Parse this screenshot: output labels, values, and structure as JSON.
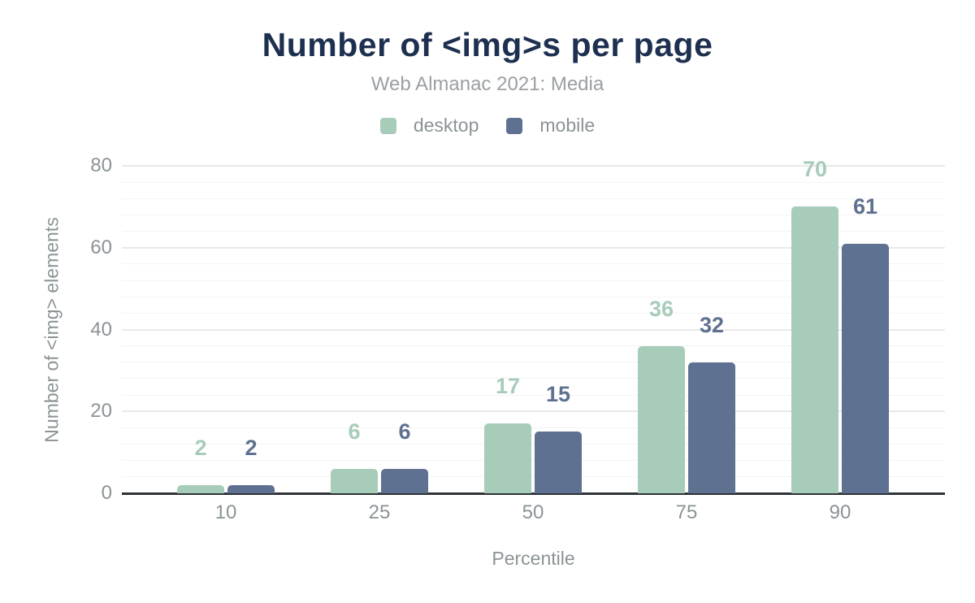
{
  "title": "Number of <img>s per page",
  "subtitle": "Web Almanac 2021: Media",
  "legend": [
    {
      "label": "desktop",
      "color": "#a8ccba"
    },
    {
      "label": "mobile",
      "color": "#5f7190"
    }
  ],
  "axes": {
    "xlabel": "Percentile",
    "ylabel": "Number of <img> elements"
  },
  "colors": {
    "title": "#1e3050",
    "subtitle": "#9aa0a4",
    "axis_text": "#8b9396",
    "axis_line": "#2f3337",
    "grid_major": "#e9e9e9",
    "grid_minor": "#f4f4f4",
    "desktop": "#a8ccba",
    "mobile": "#5f7190"
  },
  "chart_data": {
    "type": "bar",
    "title": "Number of <img>s per page",
    "subtitle": "Web Almanac 2021: Media",
    "categories": [
      "10",
      "25",
      "50",
      "75",
      "90"
    ],
    "series": [
      {
        "name": "desktop",
        "color": "#a8ccba",
        "values": [
          2,
          6,
          17,
          36,
          70
        ]
      },
      {
        "name": "mobile",
        "color": "#5f7190",
        "values": [
          2,
          6,
          15,
          32,
          61
        ]
      }
    ],
    "xlabel": "Percentile",
    "ylabel": "Number of <img> elements",
    "ylim": [
      0,
      80
    ],
    "yticks": [
      0,
      20,
      40,
      60,
      80
    ],
    "minor_grid_step": 4,
    "grid": true,
    "legend_position": "top",
    "data_labels": true
  }
}
